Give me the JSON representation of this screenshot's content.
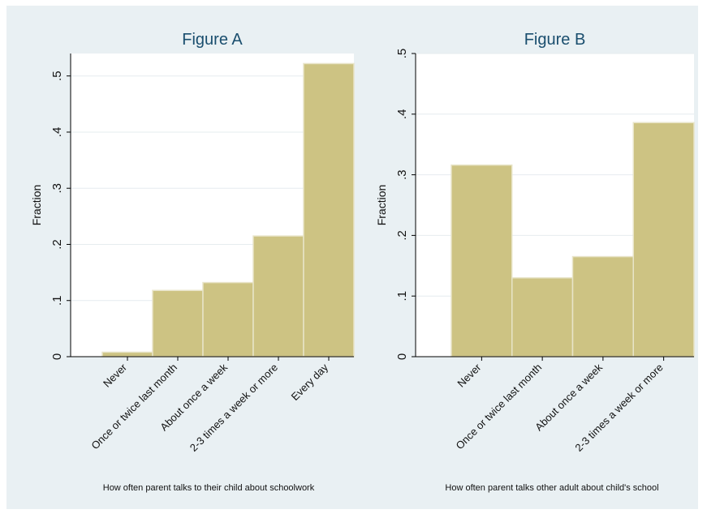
{
  "colors": {
    "outer_bg": "#e9f0f3",
    "plot_bg": "#ffffff",
    "bar_fill": "#cdc383",
    "bar_stroke": "#e8e4c8",
    "grid": "#e6ecef",
    "axis": "#000000",
    "title": "#1a4e6e"
  },
  "chart_data": [
    {
      "type": "bar",
      "title": "Figure A",
      "xlabel": "How often parent talks to their child about schoolwork",
      "ylabel": "Fraction",
      "categories": [
        "Never",
        "Once or twice last month",
        "About once a week",
        "2-3 times a week or more",
        "Every day"
      ],
      "values": [
        0.008,
        0.118,
        0.132,
        0.215,
        0.522
      ],
      "ylim": [
        0,
        0.54
      ],
      "yticks": [
        0,
        0.1,
        0.2,
        0.3,
        0.4,
        0.5
      ],
      "ytick_labels": [
        "0",
        ".1",
        ".2",
        ".3",
        ".4",
        ".5"
      ],
      "grid": true
    },
    {
      "type": "bar",
      "title": "Figure B",
      "xlabel": "How often parent talks other adult about child's school",
      "ylabel": "Fraction",
      "categories": [
        "Never",
        "Once or twice last month",
        "About once a week",
        "2-3 times a week or more"
      ],
      "values": [
        0.316,
        0.13,
        0.165,
        0.386
      ],
      "ylim": [
        0,
        0.5
      ],
      "yticks": [
        0,
        0.1,
        0.2,
        0.3,
        0.4,
        0.5
      ],
      "ytick_labels": [
        "0",
        ".1",
        ".2",
        ".3",
        ".4",
        ".5"
      ],
      "grid": true
    }
  ]
}
